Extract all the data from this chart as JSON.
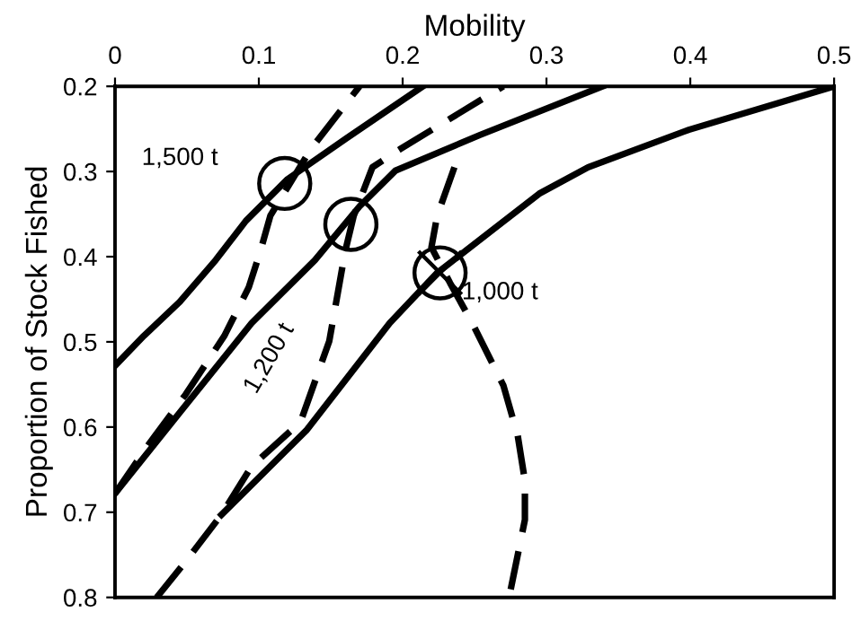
{
  "chart_data": {
    "type": "line",
    "xlabel": "Mobility",
    "ylabel": "Proportion of Stock Fished",
    "xlim": [
      0,
      0.5
    ],
    "xticks": [
      0,
      0.1,
      0.2,
      0.3,
      0.4,
      0.5
    ],
    "ylim": [
      0.8,
      0.2
    ],
    "yticks": [
      0.2,
      0.3,
      0.4,
      0.5,
      0.6,
      0.7,
      0.8
    ],
    "grid": false,
    "marker": "none",
    "series": [
      {
        "color": "#000000",
        "line_style": "solid",
        "x": [
          0,
          0.02,
          0.045,
          0.07,
          0.091,
          0.12,
          0.161,
          0.214
        ],
        "values": [
          0.528,
          0.493,
          0.453,
          0.404,
          0.358,
          0.309,
          0.261,
          0.2
        ]
      },
      {
        "color": "#000000",
        "line_style": "solid",
        "x": [
          0,
          0.045,
          0.095,
          0.139,
          0.17,
          0.195,
          0.254,
          0.339
        ],
        "values": [
          0.678,
          0.583,
          0.478,
          0.404,
          0.341,
          0.299,
          0.257,
          0.2
        ]
      },
      {
        "color": "#000000",
        "line_style": "solid",
        "x": [
          0.074,
          0.133,
          0.191,
          0.224,
          0.295,
          0.329,
          0.399,
          0.5
        ],
        "values": [
          0.703,
          0.604,
          0.478,
          0.419,
          0.326,
          0.295,
          0.251,
          0.2
        ]
      },
      {
        "color": "#000000",
        "line_style": "dashed",
        "x": [
          0,
          0.024,
          0.049,
          0.076,
          0.093,
          0.101,
          0.108,
          0.136,
          0.17
        ],
        "values": [
          0.678,
          0.619,
          0.562,
          0.493,
          0.436,
          0.394,
          0.352,
          0.274,
          0.2
        ]
      },
      {
        "color": "#000000",
        "line_style": "dashed",
        "x": [
          0.029,
          0.049,
          0.074,
          0.095,
          0.129,
          0.149,
          0.16,
          0.166,
          0.179,
          0.198,
          0.233,
          0.27
        ],
        "values": [
          0.8,
          0.758,
          0.703,
          0.646,
          0.594,
          0.499,
          0.394,
          0.352,
          0.295,
          0.274,
          0.238,
          0.2
        ]
      },
      {
        "color": "#000000",
        "line_style": "dashed",
        "x": [
          0.236,
          0.224,
          0.22,
          0.233,
          0.249,
          0.27,
          0.28,
          0.285,
          0.285,
          0.274
        ],
        "values": [
          0.295,
          0.352,
          0.389,
          0.431,
          0.48,
          0.551,
          0.61,
          0.663,
          0.709,
          0.8
        ]
      },
      {
        "type": "scatter",
        "color": "#000000",
        "marker": "circle",
        "x": [
          0.118,
          0.164,
          0.226
        ],
        "values": [
          0.314,
          0.362,
          0.419
        ]
      },
      {
        "type": "scatter",
        "color": "#000000",
        "marker": "cross",
        "x": [
          0.226
        ],
        "values": [
          0.419
        ]
      }
    ],
    "annotations": [
      {
        "text": "1,500 t",
        "x": 0.118,
        "y": 0.314
      },
      "1,200 t",
      {
        "text": "1,000 t",
        "x": 0.226,
        "y": 0.419
      }
    ]
  }
}
